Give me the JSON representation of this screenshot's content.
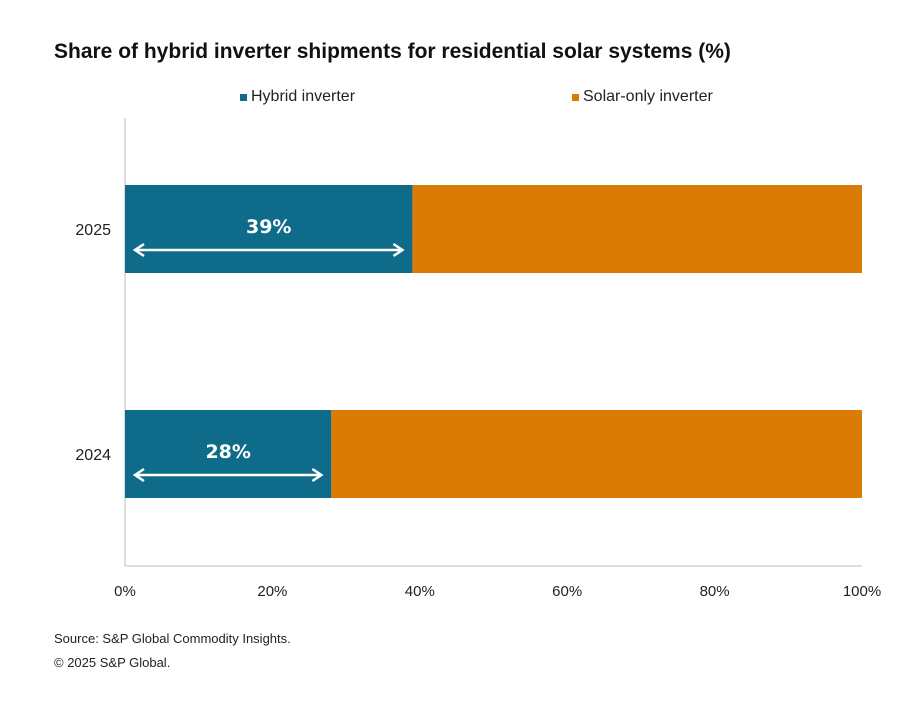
{
  "chart_data": {
    "type": "bar",
    "orientation": "horizontal",
    "stacked": true,
    "title": "Share of hybrid inverter shipments for residential solar systems (%)",
    "categories": [
      "2025",
      "2024"
    ],
    "series": [
      {
        "name": "Hybrid inverter",
        "values": [
          39,
          28
        ],
        "color": "#0e6b8a",
        "data_labels": [
          "39%",
          "28%"
        ]
      },
      {
        "name": "Solar-only inverter",
        "values": [
          61,
          72
        ],
        "color": "#d97b04"
      }
    ],
    "xlim": [
      0,
      100
    ],
    "x_ticks": [
      "0%",
      "20%",
      "40%",
      "60%",
      "80%",
      "100%"
    ],
    "x_tick_values": [
      0,
      20,
      40,
      60,
      80,
      100
    ],
    "legend": "top-center",
    "grid": false
  },
  "footer": {
    "source": "Source: S&P Global Commodity Insights.",
    "copyright": "© 2025 S&P Global."
  }
}
